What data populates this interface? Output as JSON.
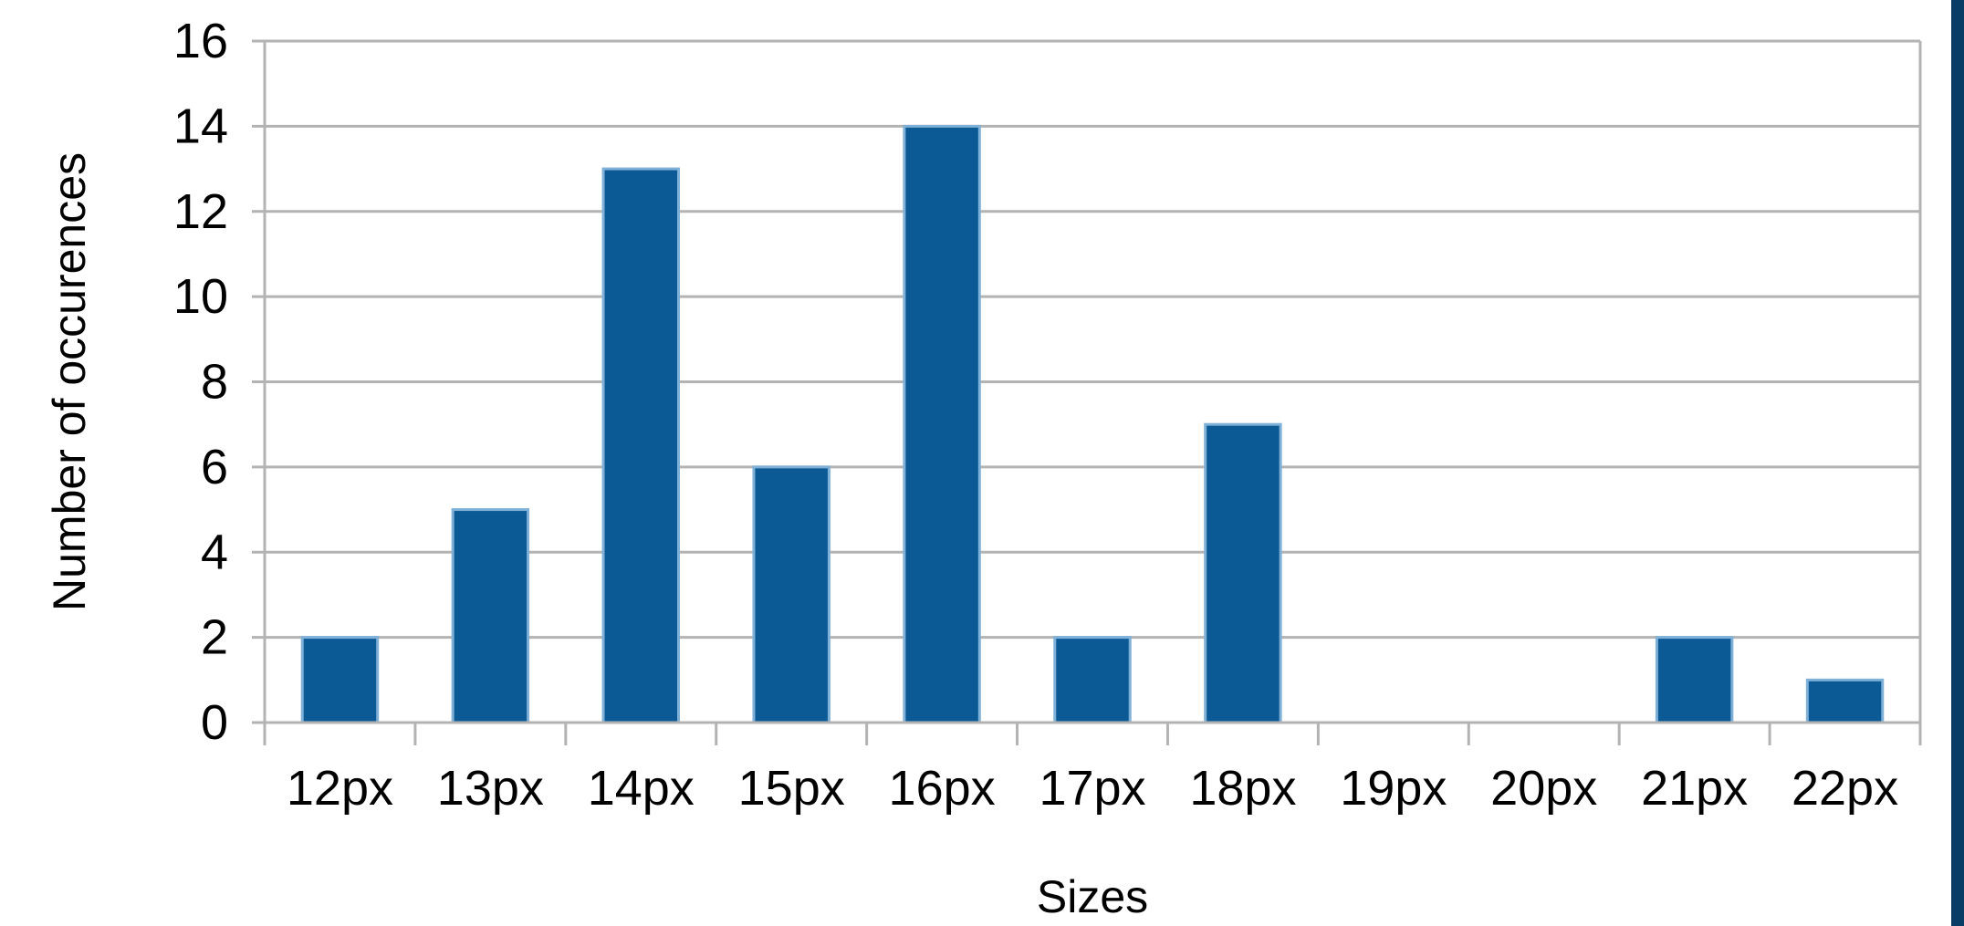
{
  "colors": {
    "bar_fill": "#0b5a96",
    "bar_stroke": "#7fb0d8",
    "grid": "#b3b3b3",
    "axis": "#b3b3b3",
    "text": "#000000",
    "right_edge": "#0a3d66"
  },
  "chart_data": {
    "type": "bar",
    "categories": [
      "12px",
      "13px",
      "14px",
      "15px",
      "16px",
      "17px",
      "18px",
      "19px",
      "20px",
      "21px",
      "22px"
    ],
    "values": [
      2,
      5,
      13,
      6,
      14,
      2,
      7,
      0,
      0,
      2,
      1
    ],
    "y_ticks": [
      "0",
      "2",
      "4",
      "6",
      "8",
      "10",
      "12",
      "14",
      "16"
    ],
    "xlabel": "Sizes",
    "ylabel": "Number of occurences",
    "ylim": [
      0,
      16
    ],
    "grid": "horizontal",
    "legend": "none"
  }
}
